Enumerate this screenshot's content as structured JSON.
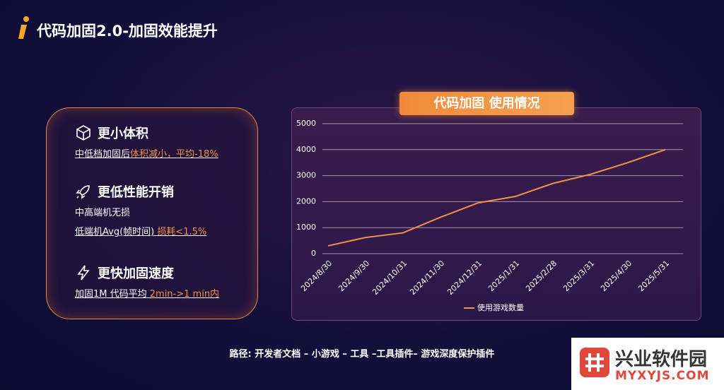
{
  "header": {
    "title": "代码加固2.0-加固效能提升"
  },
  "features": [
    {
      "heading": "更小体积",
      "lines": [
        [
          "中低档加固后",
          "体积减小，平均-18%"
        ]
      ]
    },
    {
      "heading": "更低性能开销",
      "lines": [
        [
          "中高端机无损"
        ],
        [
          "低端机Avg(帧时间) ",
          "损耗<1.5%"
        ]
      ]
    },
    {
      "heading": "更快加固速度",
      "lines": [
        [
          "加固1M 代码平均 ",
          "2min->1 min内"
        ]
      ]
    }
  ],
  "footer": "路径: 开发者文档 – 小游戏 – 工具 –工具插件– 游戏深度保护插件",
  "watermark": {
    "name": "兴业软件园",
    "url": "MYXYJS.COM"
  },
  "chart_data": {
    "type": "line",
    "title": "代码加固 使用情况",
    "categories": [
      "2024/8/30",
      "2024/9/30",
      "2024/10/31",
      "2024/11/30",
      "2024/12/31",
      "2025/1/31",
      "2025/2/28",
      "2025/3/31",
      "2025/4/30",
      "2025/5/31"
    ],
    "series": [
      {
        "name": "使用游戏数量",
        "color": "#f39245",
        "values": [
          300,
          620,
          800,
          1400,
          1950,
          2200,
          2700,
          3050,
          3500,
          4000
        ]
      }
    ],
    "ylim": [
      0,
      5000
    ],
    "yticks": [
      0,
      1000,
      2000,
      3000,
      4000,
      5000
    ],
    "grid": true,
    "legend": "bottom"
  }
}
